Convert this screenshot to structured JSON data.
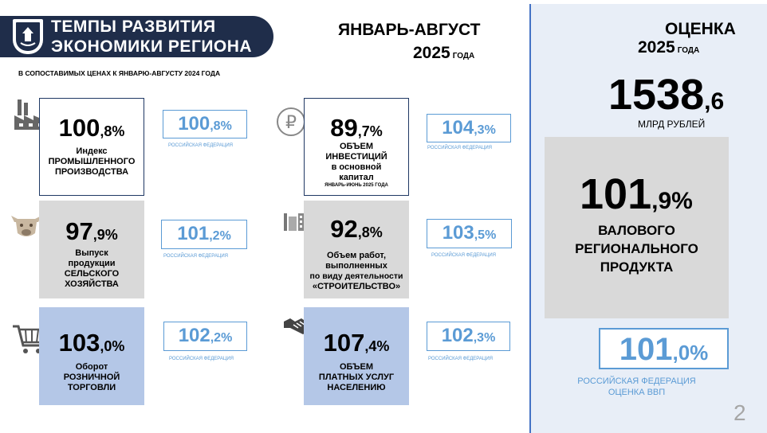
{
  "header": {
    "title_line1": "ТЕМПЫ РАЗВИТИЯ",
    "title_line2": "ЭКОНОМИКИ РЕГИОНА",
    "period": "ЯНВАРЬ-АВГУСТ",
    "year": "2025",
    "year_word": "ГОДА",
    "subtitle": "В СОПОСТАВИМЫХ ЦЕНАХ К ЯНВАРЮ-АВГУСТУ 2024 ГОДА"
  },
  "estimate": {
    "title": "ОЦЕНКА",
    "year": "2025",
    "year_word": "ГОДА",
    "amount_int": "1538",
    "amount_frac": ",6",
    "amount_unit": "МЛРД РУБЛЕЙ",
    "grp_int": "101",
    "grp_frac": ",9%",
    "grp_label1": "ВАЛОВОГО",
    "grp_label2": "РЕГИОНАЛЬНОГО",
    "grp_label3": "ПРОДУКТА",
    "rf_int": "101",
    "rf_frac": ",0%",
    "rf_label1": "РОССИЙСКАЯ ФЕДЕРАЦИЯ",
    "rf_label2": "ОЦЕНКА ВВП"
  },
  "indicators": [
    {
      "icon": "factory-icon",
      "value_int": "100",
      "value_frac": ",8%",
      "label": [
        "Индекс",
        "ПРОМЫШЛЕННОГО",
        "ПРОИЗВОДСТВА"
      ],
      "note": "",
      "rf_int": "100",
      "rf_frac": ",8%",
      "rf_label": "РОССИЙСКАЯ ФЕДЕРАЦИЯ"
    },
    {
      "icon": "ruble-icon",
      "value_int": "89",
      "value_frac": ",7%",
      "label": [
        "ОБЪЕМ",
        "ИНВЕСТИЦИЙ",
        "в основной",
        "капитал"
      ],
      "note": "ЯНВАРЬ-ИЮНЬ 2025 ГОДА",
      "rf_int": "104",
      "rf_frac": ",3%",
      "rf_label": "РОССИЙСКАЯ ФЕДЕРАЦИЯ"
    },
    {
      "icon": "cow-icon",
      "value_int": "97",
      "value_frac": ",9%",
      "label": [
        "Выпуск",
        "продукции",
        "СЕЛЬСКОГО",
        "ХОЗЯЙСТВА"
      ],
      "note": "",
      "rf_int": "101",
      "rf_frac": ",2%",
      "rf_label": "РОССИЙСКАЯ ФЕДЕРАЦИЯ"
    },
    {
      "icon": "building-icon",
      "value_int": "92",
      "value_frac": ",8%",
      "label": [
        "Объем работ,",
        "выполненных",
        "по виду деятельности",
        "«СТРОИТЕЛЬСТВО»"
      ],
      "note": "",
      "rf_int": "103",
      "rf_frac": ",5%",
      "rf_label": "РОССИЙСКАЯ ФЕДЕРАЦИЯ"
    },
    {
      "icon": "cart-icon",
      "value_int": "103",
      "value_frac": ",0%",
      "label": [
        "Оборот",
        "РОЗНИЧНОЙ",
        "ТОРГОВЛИ"
      ],
      "note": "",
      "rf_int": "102",
      "rf_frac": ",2%",
      "rf_label": "РОССИЙСКАЯ ФЕДЕРАЦИЯ"
    },
    {
      "icon": "handshake-icon",
      "value_int": "107",
      "value_frac": ",4%",
      "label": [
        "ОБЪЕМ",
        "ПЛАТНЫХ УСЛУГ",
        "НАСЕЛЕНИЮ"
      ],
      "note": "",
      "rf_int": "102",
      "rf_frac": ",3%",
      "rf_label": "РОССИЙСКАЯ ФЕДЕРАЦИЯ"
    }
  ],
  "page_number": "2",
  "colors": {
    "navy": "#1f2d4a",
    "accent_blue": "#5b9bd5",
    "panel": "#e8eef7",
    "gray_card": "#d9d9d9",
    "blue_card": "#b4c7e7"
  }
}
